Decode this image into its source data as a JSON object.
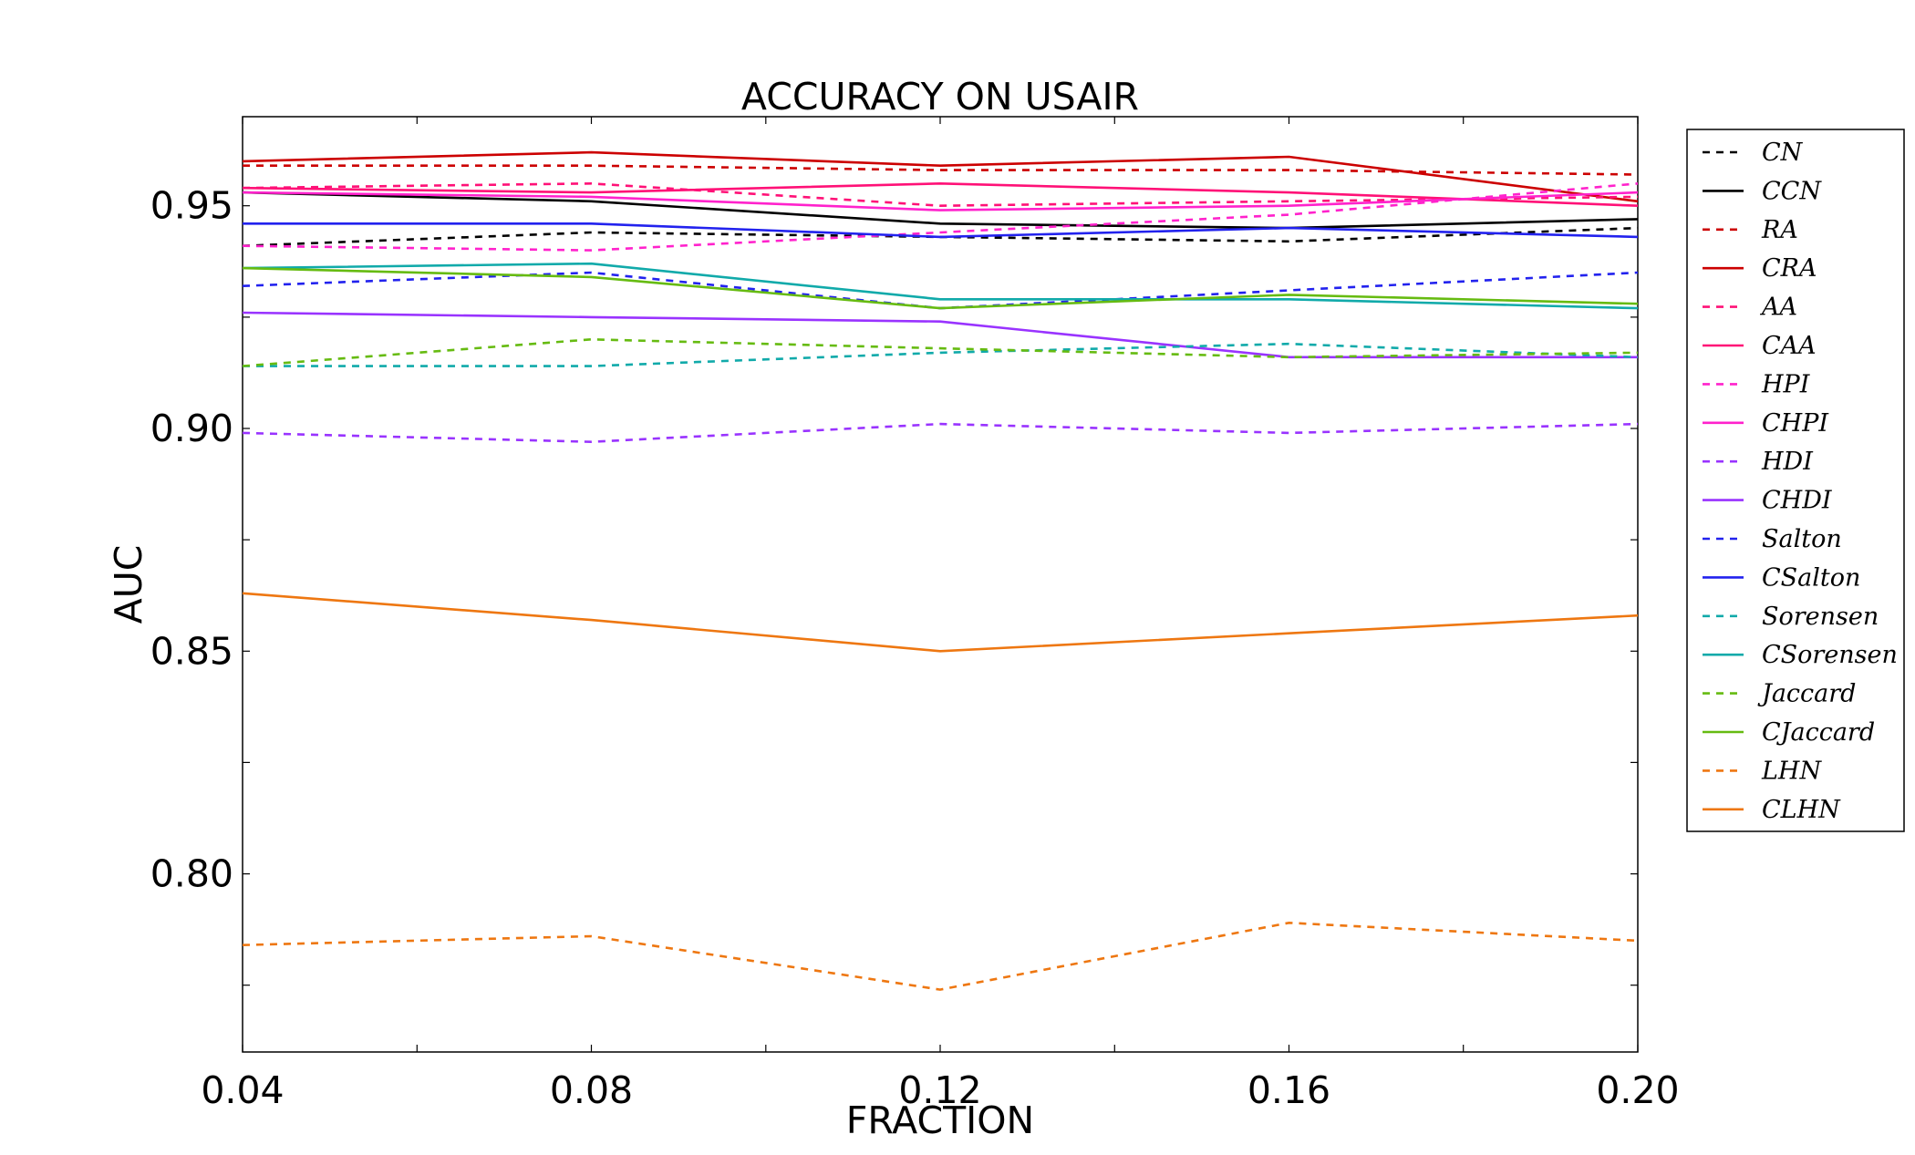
{
  "chart_data": {
    "type": "line",
    "title": "ACCURACY ON USAIR",
    "xlabel": "FRACTION",
    "ylabel": "AUC",
    "x": [
      0.04,
      0.08,
      0.12,
      0.16,
      0.2
    ],
    "x_tick_labels": [
      "0.04",
      "0.08",
      "0.12",
      "0.16",
      "0.20"
    ],
    "y_ticks": [
      0.8,
      0.85,
      0.9,
      0.95
    ],
    "y_tick_labels": [
      "0.80",
      "0.85",
      "0.90",
      "0.95"
    ],
    "xlim": [
      0.04,
      0.2
    ],
    "ylim": [
      0.76,
      0.97
    ],
    "grid": false,
    "legend_position": "outside-right",
    "series": [
      {
        "name": "CN",
        "color": "#000000",
        "dash": true,
        "values": [
          0.941,
          0.944,
          0.943,
          0.942,
          0.945
        ]
      },
      {
        "name": "CCN",
        "color": "#000000",
        "dash": false,
        "values": [
          0.953,
          0.951,
          0.946,
          0.945,
          0.947
        ]
      },
      {
        "name": "RA",
        "color": "#cc0000",
        "dash": true,
        "values": [
          0.959,
          0.959,
          0.958,
          0.958,
          0.957
        ]
      },
      {
        "name": "CRA",
        "color": "#cc0000",
        "dash": false,
        "values": [
          0.96,
          0.962,
          0.959,
          0.961,
          0.951
        ]
      },
      {
        "name": "AA",
        "color": "#ff1177",
        "dash": true,
        "values": [
          0.954,
          0.955,
          0.95,
          0.951,
          0.952
        ]
      },
      {
        "name": "CAA",
        "color": "#ff1177",
        "dash": false,
        "values": [
          0.954,
          0.953,
          0.955,
          0.953,
          0.95
        ]
      },
      {
        "name": "HPI",
        "color": "#ff22cc",
        "dash": true,
        "values": [
          0.941,
          0.94,
          0.944,
          0.948,
          0.955
        ]
      },
      {
        "name": "CHPI",
        "color": "#ff22cc",
        "dash": false,
        "values": [
          0.953,
          0.952,
          0.949,
          0.95,
          0.953
        ]
      },
      {
        "name": "HDI",
        "color": "#9933ff",
        "dash": true,
        "values": [
          0.899,
          0.897,
          0.901,
          0.899,
          0.901
        ]
      },
      {
        "name": "CHDI",
        "color": "#9933ff",
        "dash": false,
        "values": [
          0.926,
          0.925,
          0.924,
          0.916,
          0.916
        ]
      },
      {
        "name": "Salton",
        "color": "#2222ee",
        "dash": true,
        "values": [
          0.932,
          0.935,
          0.927,
          0.931,
          0.935
        ]
      },
      {
        "name": "CSalton",
        "color": "#2222ee",
        "dash": false,
        "values": [
          0.946,
          0.946,
          0.943,
          0.945,
          0.943
        ]
      },
      {
        "name": "Sorensen",
        "color": "#11aaaa",
        "dash": true,
        "values": [
          0.914,
          0.914,
          0.917,
          0.919,
          0.916
        ]
      },
      {
        "name": "CSorensen",
        "color": "#11aaaa",
        "dash": false,
        "values": [
          0.936,
          0.937,
          0.929,
          0.929,
          0.927
        ]
      },
      {
        "name": "Jaccard",
        "color": "#66bb11",
        "dash": true,
        "values": [
          0.914,
          0.92,
          0.918,
          0.916,
          0.917
        ]
      },
      {
        "name": "CJaccard",
        "color": "#66bb11",
        "dash": false,
        "values": [
          0.936,
          0.934,
          0.927,
          0.93,
          0.928
        ]
      },
      {
        "name": "LHN",
        "color": "#ee7711",
        "dash": true,
        "values": [
          0.784,
          0.786,
          0.774,
          0.789,
          0.785
        ]
      },
      {
        "name": "CLHN",
        "color": "#ee7711",
        "dash": false,
        "values": [
          0.863,
          0.857,
          0.85,
          0.854,
          0.858
        ]
      }
    ]
  }
}
